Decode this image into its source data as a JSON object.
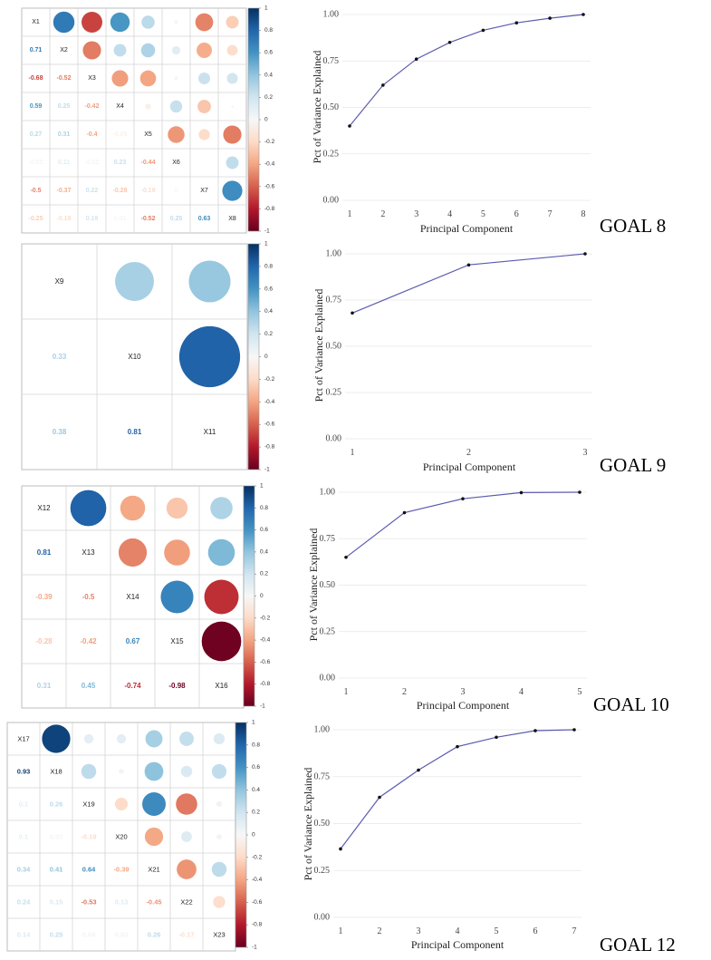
{
  "colorbar_ticks": [
    "1",
    "0.8",
    "0.6",
    "0.4",
    "0.2",
    "0",
    "-0.2",
    "-0.4",
    "-0.6",
    "-0.8",
    "-1"
  ],
  "chart_data": [
    {
      "type": "heatmap",
      "goal": "GOAL 8",
      "variables": [
        "X1",
        "X2",
        "X3",
        "X4",
        "X5",
        "X6",
        "X7",
        "X8"
      ],
      "lower_labels": [
        [
          "0.71"
        ],
        [
          "-0.68",
          "-0.52"
        ],
        [
          "0.59",
          "0.25",
          "-0.42"
        ],
        [
          "0.27",
          "0.31",
          "-0.4",
          "-0.05"
        ],
        [
          "-0.02",
          "0.11",
          "-0.02",
          "0.23",
          "-0.44"
        ],
        [
          "-0.5",
          "-0.37",
          "0.22",
          "-0.28",
          "-0.19",
          "0"
        ],
        [
          "-0.25",
          "-0.18",
          "0.19",
          "0.01",
          "-0.52",
          "0.25",
          "0.63"
        ]
      ],
      "lower_values": [
        [
          0.71
        ],
        [
          -0.68,
          -0.52
        ],
        [
          0.59,
          0.25,
          -0.42
        ],
        [
          0.27,
          0.31,
          -0.4,
          -0.05
        ],
        [
          -0.02,
          0.11,
          -0.02,
          0.23,
          -0.44
        ],
        [
          -0.5,
          -0.37,
          0.22,
          -0.28,
          -0.19,
          0.0
        ],
        [
          -0.25,
          -0.18,
          0.19,
          0.01,
          -0.52,
          0.25,
          0.63
        ]
      ]
    },
    {
      "type": "line",
      "goal": "GOAL 8",
      "x": [
        1,
        2,
        3,
        4,
        5,
        6,
        7,
        8
      ],
      "y": [
        0.4,
        0.62,
        0.76,
        0.85,
        0.915,
        0.955,
        0.98,
        1.0
      ],
      "xlabel": "Principal Component",
      "ylabel": "Pct of Variance Explained",
      "yticks": [
        "0.00",
        "0.25",
        "0.50",
        "0.75",
        "1.00"
      ],
      "ylim": [
        0,
        1
      ]
    },
    {
      "type": "heatmap",
      "goal": "GOAL 9",
      "variables": [
        "X9",
        "X10",
        "X11"
      ],
      "lower_labels": [
        [
          "0.33"
        ],
        [
          "0.38",
          "0.81"
        ]
      ],
      "lower_values": [
        [
          0.33
        ],
        [
          0.38,
          0.81
        ]
      ]
    },
    {
      "type": "line",
      "goal": "GOAL 9",
      "x": [
        1,
        2,
        3
      ],
      "y": [
        0.68,
        0.94,
        1.0
      ],
      "xlabel": "Principal Component",
      "ylabel": "Pct of Variance Explained",
      "yticks": [
        "0.00",
        "0.25",
        "0.50",
        "0.75",
        "1.00"
      ],
      "ylim": [
        0,
        1
      ]
    },
    {
      "type": "heatmap",
      "goal": "GOAL 10",
      "variables": [
        "X12",
        "X13",
        "X14",
        "X15",
        "X16"
      ],
      "lower_labels": [
        [
          "0.81"
        ],
        [
          "-0.39",
          "-0.5"
        ],
        [
          "-0.28",
          "-0.42",
          "0.67"
        ],
        [
          "0.31",
          "0.45",
          "-0.74",
          "-0.98"
        ]
      ],
      "lower_values": [
        [
          0.81
        ],
        [
          -0.39,
          -0.5
        ],
        [
          -0.28,
          -0.42,
          0.67
        ],
        [
          0.31,
          0.45,
          -0.74,
          -0.98
        ]
      ]
    },
    {
      "type": "line",
      "goal": "GOAL 10",
      "x": [
        1,
        2,
        3,
        4,
        5
      ],
      "y": [
        0.65,
        0.89,
        0.965,
        0.998,
        1.0
      ],
      "xlabel": "Principal Component",
      "ylabel": "Pct of Variance Explained",
      "yticks": [
        "0.00",
        "0.25",
        "0.50",
        "0.75",
        "1.00"
      ],
      "ylim": [
        0,
        1
      ]
    },
    {
      "type": "heatmap",
      "goal": "GOAL 12",
      "variables": [
        "X17",
        "X18",
        "X19",
        "X20",
        "X21",
        "X22",
        "X23"
      ],
      "lower_labels": [
        [
          "0.93"
        ],
        [
          "0.1",
          "0.26"
        ],
        [
          "0.1",
          "0.03",
          "-0.19"
        ],
        [
          "0.34",
          "0.41",
          "0.64",
          "-0.39"
        ],
        [
          "0.24",
          "0.15",
          "-0.53",
          "0.13",
          "-0.45"
        ],
        [
          "0.14",
          "0.25",
          "0.04",
          "0.03",
          "0.26",
          "-0.17"
        ]
      ],
      "lower_values": [
        [
          0.93
        ],
        [
          0.1,
          0.26
        ],
        [
          0.1,
          0.03,
          -0.19
        ],
        [
          0.34,
          0.41,
          0.64,
          -0.39
        ],
        [
          0.24,
          0.15,
          -0.53,
          0.13,
          -0.45
        ],
        [
          0.14,
          0.25,
          0.04,
          0.03,
          0.26,
          -0.17
        ]
      ]
    },
    {
      "type": "line",
      "goal": "GOAL 12",
      "x": [
        1,
        2,
        3,
        4,
        5,
        6,
        7
      ],
      "y": [
        0.365,
        0.64,
        0.785,
        0.91,
        0.96,
        0.995,
        1.0
      ],
      "xlabel": "Principal Component",
      "ylabel": "Pct of Variance Explained",
      "yticks": [
        "0.00",
        "0.25",
        "0.50",
        "0.75",
        "1.00"
      ],
      "ylim": [
        0,
        1
      ]
    }
  ]
}
